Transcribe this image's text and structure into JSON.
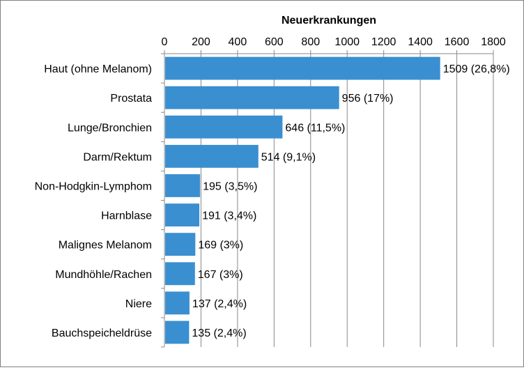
{
  "chart_data": {
    "type": "bar",
    "orientation": "horizontal",
    "title": "Neuerkrankungen",
    "xlim": [
      0,
      1800
    ],
    "ticks": [
      "0",
      "200",
      "400",
      "600",
      "800",
      "1000",
      "1200",
      "1400",
      "1600",
      "1800"
    ],
    "tick_values": [
      0,
      200,
      400,
      600,
      800,
      1000,
      1200,
      1400,
      1600,
      1800
    ],
    "categories": [
      "Haut (ohne Melanom)",
      "Prostata",
      "Lunge/Bronchien",
      "Darm/Rektum",
      "Non-Hodgkin-Lymphom",
      "Harnblase",
      "Malignes Melanom",
      "Mundhöhle/Rachen",
      "Niere",
      "Bauchspeicheldrüse"
    ],
    "values": [
      1509,
      956,
      646,
      514,
      195,
      191,
      169,
      167,
      137,
      135
    ],
    "data_labels": [
      "1509 (26,8%)",
      "956 (17%)",
      "646 (11,5%)",
      "514 (9,1%)",
      "195 (3,5%)",
      "191 (3,4%)",
      "169 (3%)",
      "167 (3%)",
      "137 (2,4%)",
      "135 (2,4%)"
    ],
    "bar_color": "#3a8fd0",
    "gridlines": true,
    "axis_position": "top",
    "legend": "none"
  }
}
